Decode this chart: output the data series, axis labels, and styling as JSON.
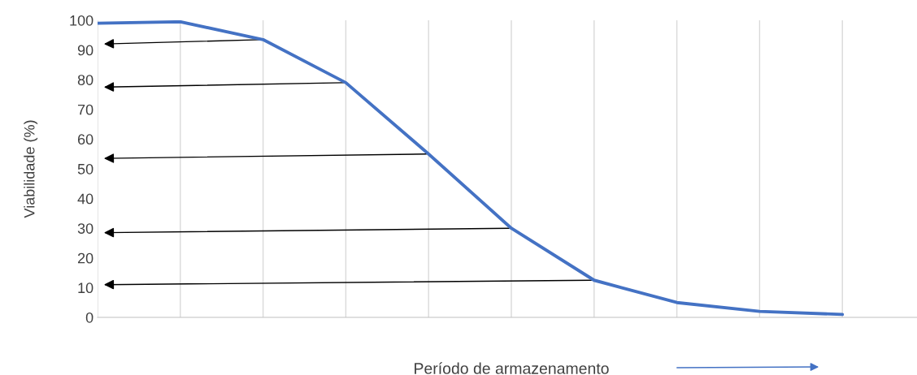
{
  "chart_data": {
    "type": "line",
    "xlabel": "Período de armazenamento",
    "ylabel": "Viabilidade (%)",
    "categories": [
      null,
      null,
      null,
      null,
      null,
      null,
      null,
      null,
      null,
      null
    ],
    "series": [
      {
        "color": "#4472c4",
        "values": [
          99,
          99.5,
          93.5,
          79,
          55,
          30,
          12.5,
          5,
          2,
          1
        ]
      }
    ],
    "ylim": [
      0,
      100
    ],
    "yticks": [
      0,
      10,
      20,
      30,
      40,
      50,
      60,
      70,
      80,
      90,
      100
    ],
    "grid": "x",
    "tick_labels": "y",
    "marker": "none",
    "line_style": "solid"
  }
}
